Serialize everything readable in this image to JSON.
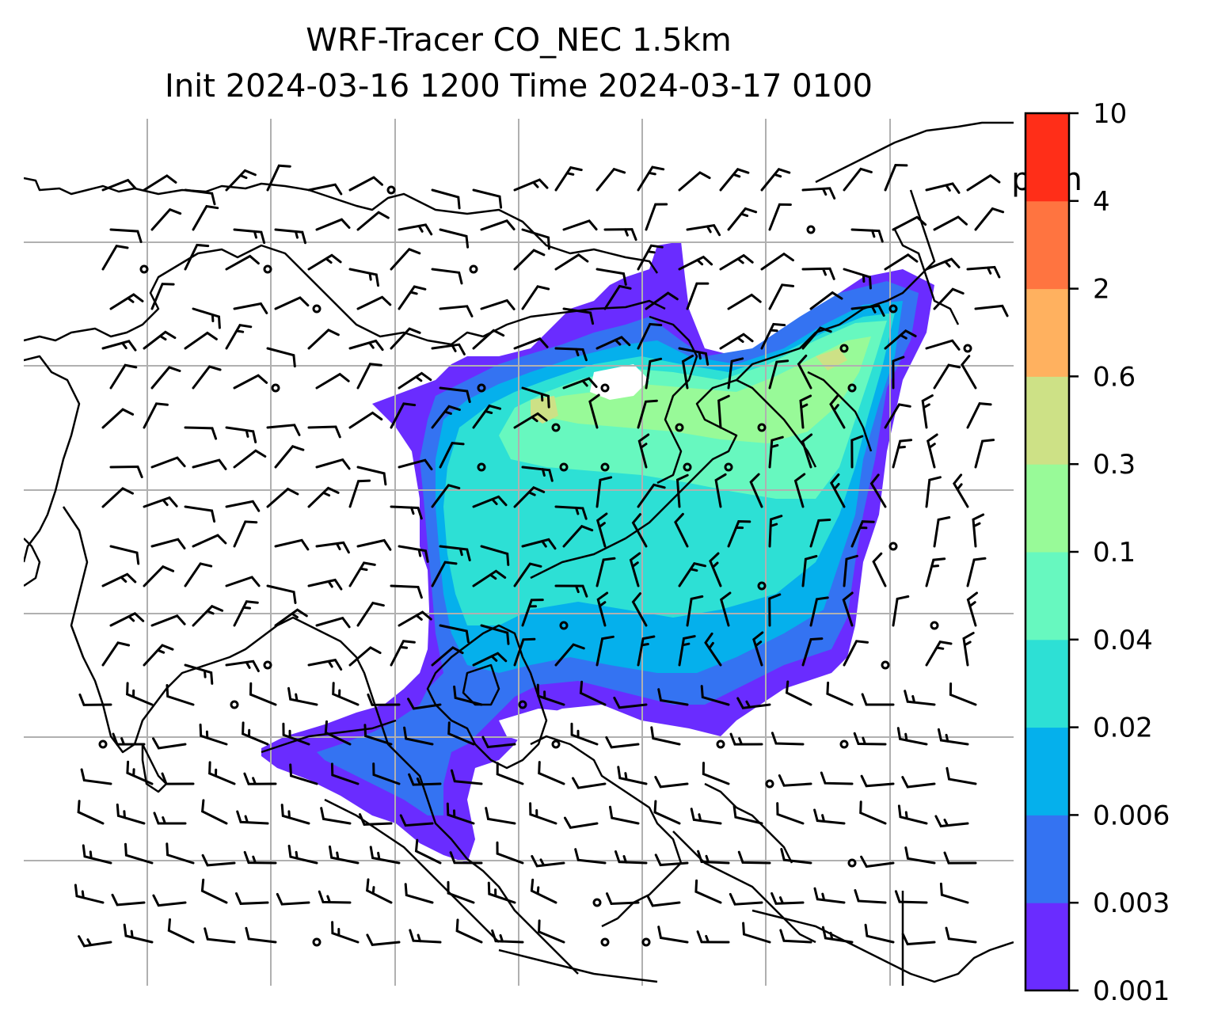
{
  "title": {
    "line1": "WRF-Tracer CO_NEC 1.5km",
    "line2": "Init 2024-03-16 1200 Time 2024-03-17 0100"
  },
  "colorbar": {
    "unit": "ppm",
    "levels": [
      "0.001",
      "0.003",
      "0.006",
      "0.02",
      "0.04",
      "0.1",
      "0.3",
      "0.6",
      "2",
      "4",
      "10"
    ],
    "colors": [
      "#6a2cff",
      "#3473f2",
      "#05b0ec",
      "#2de0d5",
      "#67f8bf",
      "#98fa98",
      "#cde186",
      "#ffb15f",
      "#ff7440",
      "#ff2e18"
    ]
  },
  "map": {
    "coastline_color": "#000000",
    "gridline_color": "#b0b0b0",
    "wind_barb_color": "#000000",
    "calm_marker": "open-circle"
  }
}
